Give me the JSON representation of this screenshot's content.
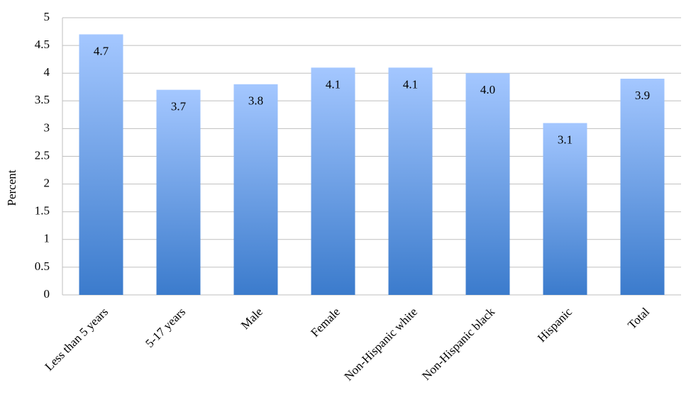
{
  "chart_data": {
    "type": "bar",
    "ylabel": "Percent",
    "categories": [
      "Less than 5 years",
      "5-17 years",
      "Male",
      "Female",
      "Non-Hispanic white",
      "Non-Hispanic black",
      "Hispanic",
      "Total"
    ],
    "values": [
      4.7,
      3.7,
      3.8,
      4.1,
      4.1,
      4.0,
      3.1,
      3.9
    ],
    "value_labels": [
      "4.7",
      "3.7",
      "3.8",
      "4.1",
      "4.1",
      "4.0",
      "3.1",
      "3.9"
    ],
    "color": [
      "#a4c7ff",
      "#3b7bcc"
    ],
    "ylim": [
      0,
      5
    ],
    "yticks": [
      0,
      0.5,
      1,
      1.5,
      2,
      2.5,
      3,
      3.5,
      4,
      4.5,
      5
    ],
    "grid": true
  }
}
